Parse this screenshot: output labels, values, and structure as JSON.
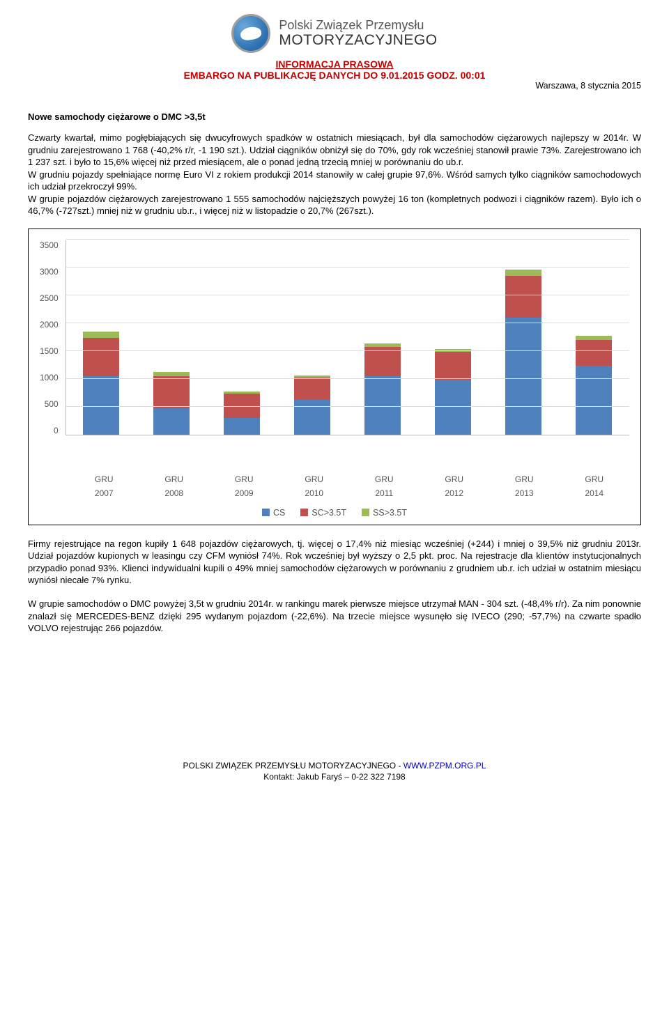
{
  "org": {
    "line1": "Polski Związek Przemysłu",
    "line2": "MOTORYZACYJNEGO"
  },
  "header": {
    "info_title": "INFORMACJA PRASOWA",
    "embargo": "EMBARGO NA PUBLIKACJĘ DANYCH DO 9.01.2015 GODZ. 00:01",
    "dateline": "Warszawa, 8 stycznia 2015"
  },
  "section_title": "Nowe samochody ciężarowe o DMC >3,5t",
  "para1": "Czwarty kwartał, mimo pogłębiających się dwucyfrowych spadków w ostatnich miesiącach, był dla samochodów ciężarowych najlepszy w 2014r. W grudniu zarejestrowano 1 768 (-40,2% r/r, -1 190 szt.). Udział ciągników obniżył się do 70%, gdy rok wcześniej stanowił prawie 73%. Zarejestrowano ich 1 237 szt. i było to 15,6% więcej niż przed miesiącem, ale o ponad jedną trzecią mniej w porównaniu do ub.r.",
  "para2": "W grudniu pojazdy spełniające normę Euro VI z rokiem produkcji 2014 stanowiły w całej grupie 97,6%. Wśród samych tylko ciągników samochodowych ich udział przekroczył 99%.",
  "para3": "W grupie pojazdów ciężarowych zarejestrowano 1 555 samochodów najcięższych powyżej 16 ton (kompletnych podwozi i ciągników razem). Było ich o 46,7% (-727szt.) mniej niż w grudniu ub.r., i więcej niż w listopadzie o 20,7% (267szt.).",
  "chart": {
    "type": "stacked-bar",
    "ylim": [
      0,
      3500
    ],
    "ytick_step": 500,
    "yticks": [
      "3500",
      "3000",
      "2500",
      "2000",
      "1500",
      "1000",
      "500",
      "0"
    ],
    "x_label": "GRU",
    "years": [
      "2007",
      "2008",
      "2009",
      "2010",
      "2011",
      "2012",
      "2013",
      "2014"
    ],
    "series": [
      {
        "name": "CS",
        "color": "#4f81bd"
      },
      {
        "name": "SC>3.5T",
        "color": "#c0504d"
      },
      {
        "name": "SS>3.5T",
        "color": "#9bbb59"
      }
    ],
    "stacks": [
      {
        "cs": 1050,
        "sc": 680,
        "ss": 120
      },
      {
        "cs": 470,
        "sc": 580,
        "ss": 70
      },
      {
        "cs": 300,
        "sc": 440,
        "ss": 35
      },
      {
        "cs": 620,
        "sc": 400,
        "ss": 45
      },
      {
        "cs": 1050,
        "sc": 520,
        "ss": 60
      },
      {
        "cs": 980,
        "sc": 500,
        "ss": 55
      },
      {
        "cs": 2100,
        "sc": 750,
        "ss": 110
      },
      {
        "cs": 1237,
        "sc": 460,
        "ss": 70
      }
    ],
    "grid_color": "#dddddd",
    "axis_color": "#bbbbbb",
    "background_color": "#ffffff"
  },
  "para4": "Firmy rejestrujące na regon kupiły 1 648 pojazdów ciężarowych, tj. więcej o 17,4% niż miesiąc wcześniej (+244) i mniej o 39,5% niż grudniu 2013r. Udział pojazdów kupionych w leasingu czy CFM wyniósł 74%. Rok wcześniej był wyższy o 2,5 pkt. proc. Na rejestracje dla klientów instytucjonalnych przypadło ponad 93%. Klienci indywidualni kupili o 49% mniej samochodów ciężarowych w porównaniu z grudniem ub.r. ich udział w ostatnim miesiącu wyniósł niecałe 7% rynku.",
  "para5": "W grupie samochodów o DMC powyżej 3,5t w grudniu 2014r. w rankingu marek pierwsze miejsce utrzymał MAN  - 304 szt. (-48,4% r/r). Za nim ponownie znalazł się MERCEDES-BENZ dzięki 295 wydanym pojazdom (-22,6%). Na trzecie miejsce wysunęło się IVECO (290; -57,7%) na czwarte spadło VOLVO rejestrując 266 pojazdów.",
  "footer": {
    "org_line": "POLSKI ZWIĄZEK PRZEMYSŁU MOTORYZACYJNEGO - ",
    "url": "WWW.PZPM.ORG.PL",
    "contact": "Kontakt: Jakub Faryś – 0-22 322 7198"
  }
}
